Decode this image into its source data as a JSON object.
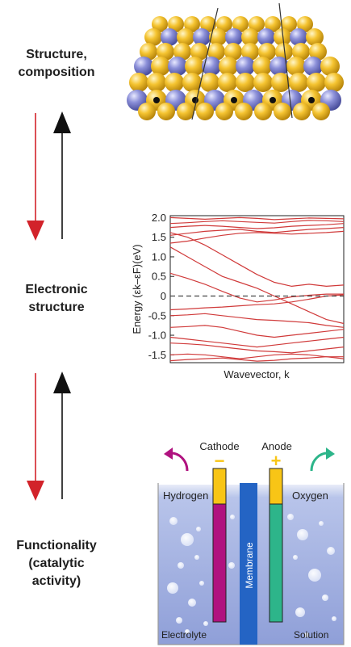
{
  "labels": {
    "structure_line1": "Structure,",
    "structure_line2": "composition",
    "electronic_line1": "Electronic",
    "electronic_line2": "structure",
    "functionality_line1": "Functionality",
    "functionality_line2": "(catalytic",
    "functionality_line3": "activity)"
  },
  "colors": {
    "red_arrow": "#d2232a",
    "black_arrow": "#111111",
    "gold_atom": "#f5c431",
    "blue_atom": "#8b8fd8",
    "band_line": "#d03a3a",
    "membrane": "#2464c4",
    "magenta": "#b0127f",
    "green": "#2db58a",
    "yellow": "#f8c516",
    "electrolyte": "#a2b3e2"
  },
  "chart_data": {
    "type": "line",
    "title": "",
    "xlabel": "Wavevector, k",
    "ylabel": "Energy (εk–εF)(eV)",
    "ylim": [
      -1.7,
      2.05
    ],
    "yticks": [
      "2.0",
      "1.5",
      "1.0",
      "0.5",
      "0",
      "-0.5",
      "-1.0",
      "-1.5"
    ],
    "ytick_values": [
      2.0,
      1.5,
      1.0,
      0.5,
      0,
      -0.5,
      -1.0,
      -1.5
    ],
    "fermi_level": 0,
    "x": [
      0,
      0.1,
      0.2,
      0.3,
      0.4,
      0.5,
      0.6,
      0.7,
      0.8,
      0.9,
      1.0
    ],
    "series": [
      {
        "values": [
          2.0,
          1.98,
          1.96,
          1.98,
          2.0,
          1.98,
          1.95,
          1.97,
          1.99,
          1.98,
          1.97
        ]
      },
      {
        "values": [
          1.85,
          1.87,
          1.9,
          1.92,
          1.9,
          1.88,
          1.86,
          1.9,
          1.93,
          1.92,
          1.9
        ]
      },
      {
        "values": [
          1.75,
          1.78,
          1.8,
          1.78,
          1.75,
          1.72,
          1.74,
          1.78,
          1.8,
          1.82,
          1.85
        ]
      },
      {
        "values": [
          1.55,
          1.6,
          1.65,
          1.68,
          1.7,
          1.65,
          1.62,
          1.66,
          1.7,
          1.72,
          1.75
        ]
      },
      {
        "values": [
          1.35,
          1.4,
          1.48,
          1.55,
          1.6,
          1.62,
          1.6,
          1.58,
          1.6,
          1.62,
          1.65
        ]
      },
      {
        "values": [
          1.25,
          1.0,
          0.75,
          0.5,
          0.35,
          0.2,
          0.0,
          -0.2,
          -0.4,
          -0.6,
          -0.7
        ]
      },
      {
        "values": [
          1.62,
          1.5,
          1.3,
          1.05,
          0.8,
          0.55,
          0.35,
          0.25,
          0.3,
          0.25,
          0.28
        ]
      },
      {
        "values": [
          0.58,
          0.45,
          0.3,
          0.12,
          -0.05,
          -0.15,
          -0.1,
          -0.02,
          0.02,
          0.05,
          0.05
        ]
      },
      {
        "values": [
          -0.35,
          -0.33,
          -0.3,
          -0.28,
          -0.25,
          -0.22,
          -0.2,
          -0.15,
          -0.08,
          0.0,
          0.03
        ]
      },
      {
        "values": [
          -0.5,
          -0.48,
          -0.45,
          -0.5,
          -0.55,
          -0.6,
          -0.62,
          -0.65,
          -0.68,
          -0.75,
          -0.8
        ]
      },
      {
        "values": [
          -0.8,
          -0.78,
          -0.75,
          -0.8,
          -0.9,
          -1.0,
          -1.05,
          -1.0,
          -0.95,
          -0.9,
          -0.85
        ]
      },
      {
        "values": [
          -1.05,
          -1.1,
          -1.15,
          -1.2,
          -1.25,
          -1.3,
          -1.25,
          -1.2,
          -1.15,
          -1.1,
          -1.05
        ]
      },
      {
        "values": [
          -1.2,
          -1.22,
          -1.25,
          -1.3,
          -1.35,
          -1.4,
          -1.42,
          -1.45,
          -1.4,
          -1.35,
          -1.3
        ]
      },
      {
        "values": [
          -1.5,
          -1.48,
          -1.5,
          -1.55,
          -1.6,
          -1.55,
          -1.5,
          -1.48,
          -1.5,
          -1.55,
          -1.6
        ]
      },
      {
        "values": [
          -1.65,
          -1.62,
          -1.6,
          -1.58,
          -1.62,
          -1.66,
          -1.64,
          -1.6,
          -1.58,
          -1.55,
          -1.55
        ]
      }
    ]
  },
  "cell": {
    "cathode_label": "Cathode",
    "anode_label": "Anode",
    "cathode_sign": "−",
    "anode_sign": "+",
    "hydrogen_label": "Hydrogen",
    "oxygen_label": "Oxygen",
    "membrane_label": "Membrane",
    "electrolyte_label": "Electrolyte",
    "solution_label": "Solution"
  }
}
